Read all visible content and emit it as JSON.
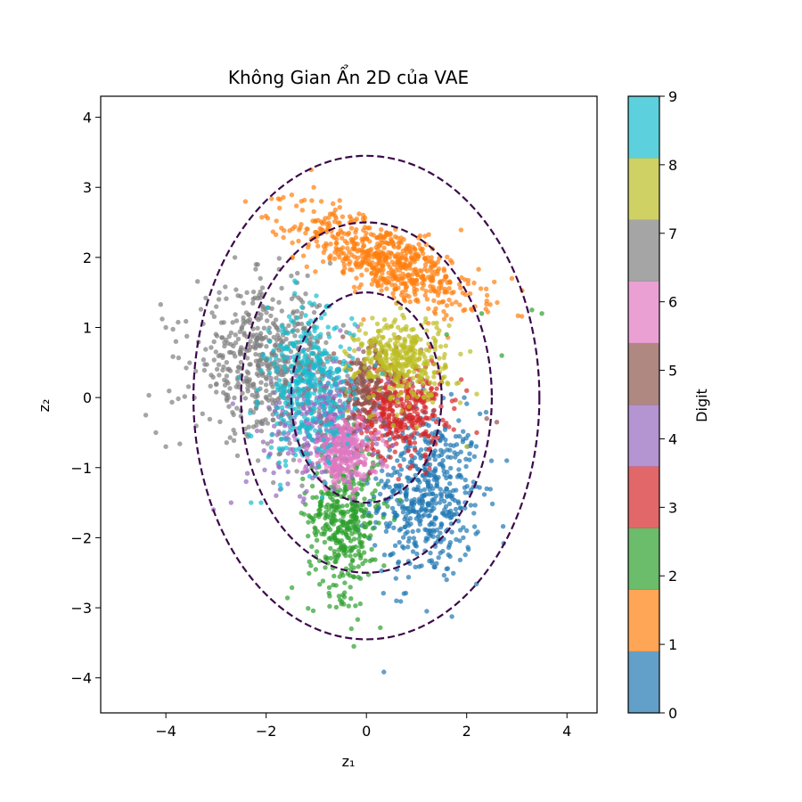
{
  "chart_data": {
    "type": "scatter",
    "title": "Không Gian Ẩn 2D của VAE",
    "xlabel": "z₁",
    "ylabel": "z₂",
    "xlim": [
      -5.3,
      4.6
    ],
    "ylim": [
      -4.5,
      4.3
    ],
    "xticks": [
      -4,
      -2,
      0,
      2,
      4
    ],
    "yticks": [
      -4,
      -3,
      -2,
      -1,
      0,
      1,
      2,
      3,
      4
    ],
    "grid": false,
    "point_alpha": 0.7,
    "colorbar": {
      "label": "Digit",
      "range": [
        0,
        9
      ],
      "ticks": [
        0,
        1,
        2,
        3,
        4,
        5,
        6,
        7,
        8,
        9
      ],
      "colors": [
        "#1f77b4",
        "#ff7f0e",
        "#2ca02c",
        "#d62728",
        "#9467bd",
        "#8c564b",
        "#e377c2",
        "#7f7f7f",
        "#bcbd22",
        "#17becf"
      ]
    },
    "reference_circles": {
      "style": "dashed",
      "color": "#3b0a4a",
      "center": [
        0,
        0
      ],
      "radii": [
        1.5,
        2.5,
        3.45
      ]
    },
    "series": [
      {
        "digit": 0,
        "color": "#1f77b4",
        "center": [
          1.2,
          -1.4
        ],
        "spread": [
          0.55,
          0.6
        ],
        "count": 520,
        "extremes": [
          [
            2.8,
            -0.9
          ],
          [
            2.4,
            -1.3
          ],
          [
            1.1,
            -2.4
          ],
          [
            0.6,
            -2.9
          ],
          [
            2.0,
            -1.9
          ],
          [
            1.6,
            -2.6
          ]
        ]
      },
      {
        "digit": 1,
        "color": "#ff7f0e",
        "center": [
          0.4,
          1.95
        ],
        "spread": [
          0.9,
          0.25
        ],
        "tilt": -0.28,
        "count": 620,
        "extremes": [
          [
            -1.1,
            3.25
          ],
          [
            -1.05,
            3.0
          ],
          [
            -0.9,
            2.8
          ],
          [
            2.9,
            1.7
          ],
          [
            2.55,
            1.65
          ],
          [
            -0.3,
            2.55
          ]
        ]
      },
      {
        "digit": 2,
        "color": "#2ca02c",
        "center": [
          -0.45,
          -1.7
        ],
        "spread": [
          0.35,
          0.55
        ],
        "count": 420,
        "extremes": [
          [
            -0.25,
            -3.55
          ],
          [
            -0.3,
            -3.3
          ],
          [
            -0.45,
            -2.95
          ],
          [
            3.5,
            1.2
          ],
          [
            3.3,
            1.25
          ],
          [
            2.7,
            0.6
          ],
          [
            2.3,
            1.2
          ],
          [
            1.6,
            0.9
          ]
        ]
      },
      {
        "digit": 3,
        "color": "#d62728",
        "center": [
          0.6,
          -0.15
        ],
        "spread": [
          0.45,
          0.35
        ],
        "count": 430,
        "extremes": [
          [
            2.0,
            0.1
          ],
          [
            2.2,
            -0.5
          ],
          [
            1.2,
            -0.9
          ]
        ]
      },
      {
        "digit": 4,
        "color": "#9467bd",
        "center": [
          -0.9,
          -0.3
        ],
        "spread": [
          0.55,
          0.45
        ],
        "count": 380,
        "extremes": [
          [
            -3.05,
            -1.6
          ],
          [
            -2.7,
            -1.5
          ],
          [
            -2.4,
            -1.2
          ],
          [
            -1.8,
            -1.4
          ]
        ]
      },
      {
        "digit": 5,
        "color": "#8c564b",
        "center": [
          0.0,
          0.15
        ],
        "spread": [
          0.3,
          0.3
        ],
        "count": 160,
        "extremes": [
          [
            2.4,
            -0.3
          ],
          [
            2.6,
            -0.35
          ]
        ]
      },
      {
        "digit": 6,
        "color": "#e377c2",
        "center": [
          -0.45,
          -0.8
        ],
        "spread": [
          0.35,
          0.25
        ],
        "count": 260,
        "extremes": [
          [
            -0.9,
            -0.6
          ],
          [
            0.15,
            -1.05
          ]
        ]
      },
      {
        "digit": 7,
        "color": "#7f7f7f",
        "center": [
          -2.0,
          0.5
        ],
        "spread": [
          0.7,
          0.5
        ],
        "count": 560,
        "extremes": [
          [
            -4.4,
            -0.25
          ],
          [
            -4.2,
            -0.5
          ],
          [
            -4.0,
            -0.7
          ],
          [
            -4.0,
            1.0
          ],
          [
            -3.8,
            0.8
          ],
          [
            -2.2,
            1.9
          ]
        ]
      },
      {
        "digit": 8,
        "color": "#bcbd22",
        "center": [
          0.7,
          0.55
        ],
        "spread": [
          0.45,
          0.3
        ],
        "count": 360,
        "extremes": [
          [
            2.2,
            0.05
          ],
          [
            2.0,
            -0.7
          ],
          [
            1.8,
            0.2
          ]
        ]
      },
      {
        "digit": 9,
        "color": "#17becf",
        "center": [
          -1.15,
          0.15
        ],
        "spread": [
          0.45,
          0.55
        ],
        "count": 380,
        "extremes": [
          [
            -2.3,
            -1.5
          ],
          [
            -2.1,
            -1.5
          ],
          [
            -1.7,
            -1.3
          ],
          [
            -2.3,
            -0.55
          ],
          [
            -0.6,
            1.0
          ]
        ]
      }
    ]
  }
}
